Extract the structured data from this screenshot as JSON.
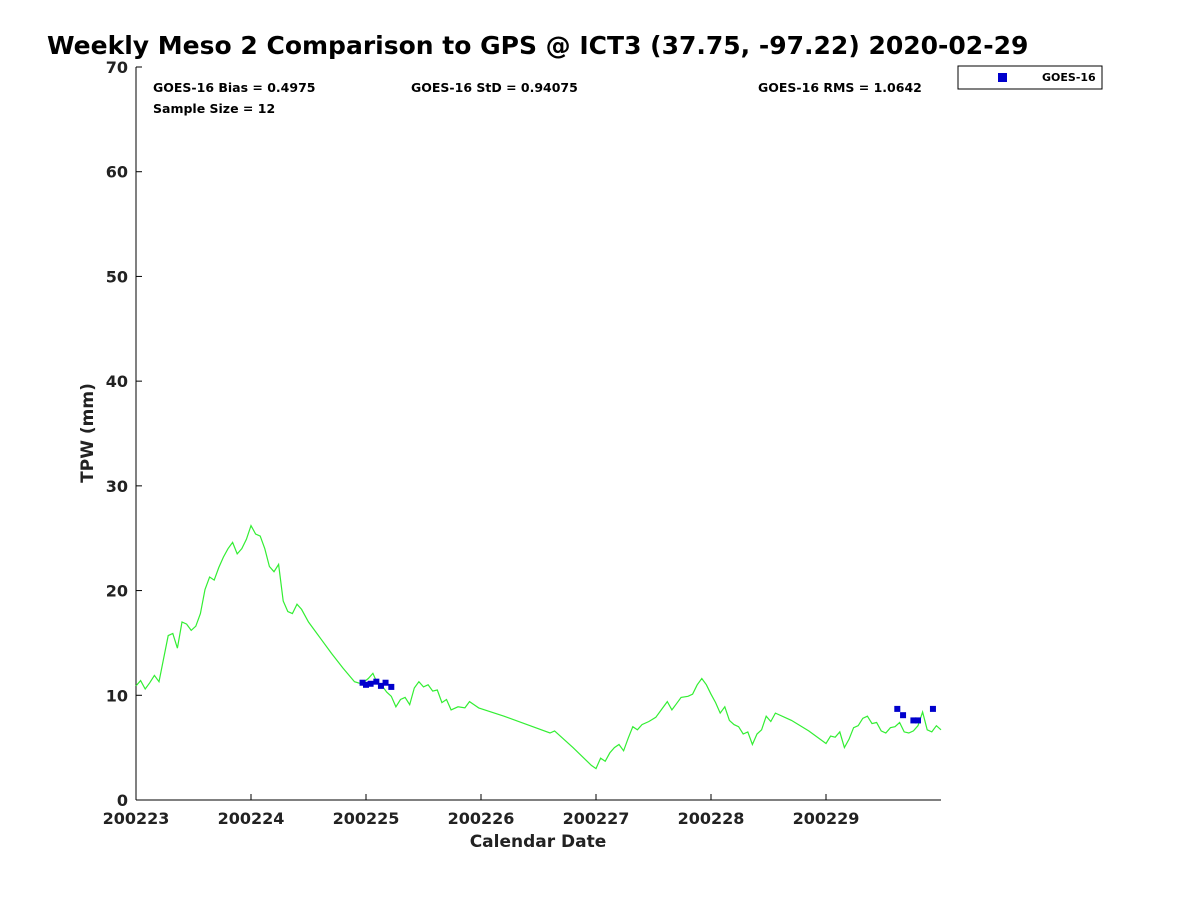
{
  "chart_data": {
    "type": "scatter",
    "title": "Weekly Meso 2 Comparison to GPS @ ICT3 (37.75, -97.22) 2020-02-29",
    "xlabel": "Calendar Date",
    "ylabel": "TPW (mm)",
    "xlim": [
      0,
      7
    ],
    "ylim": [
      0,
      70
    ],
    "x_ticks": [
      {
        "value": 0,
        "label": "200223"
      },
      {
        "value": 1,
        "label": "200224"
      },
      {
        "value": 2,
        "label": "200225"
      },
      {
        "value": 3,
        "label": "200226"
      },
      {
        "value": 4,
        "label": "200227"
      },
      {
        "value": 5,
        "label": "200228"
      },
      {
        "value": 6,
        "label": "200229"
      }
    ],
    "y_ticks": [
      0,
      10,
      20,
      30,
      40,
      50,
      60,
      70
    ],
    "stats": {
      "bias": "GOES-16 Bias = 0.4975",
      "std": "GOES-16 StD = 0.94075",
      "rms": "GOES-16 RMS = 1.0642",
      "sample": "Sample Size = 12"
    },
    "legend": {
      "position": "top-right-outside",
      "entries": [
        {
          "label": "GOES-16",
          "color": "#0000cc",
          "marker": "square"
        }
      ]
    },
    "gps_color": "#33ee33",
    "series": [
      {
        "name": "",
        "kind": "line",
        "color": "#33ee33",
        "points": [
          [
            0.0,
            10.9
          ],
          [
            0.04,
            11.4
          ],
          [
            0.08,
            10.6
          ],
          [
            0.12,
            11.2
          ],
          [
            0.16,
            11.9
          ],
          [
            0.2,
            11.3
          ],
          [
            0.24,
            13.5
          ],
          [
            0.28,
            15.7
          ],
          [
            0.32,
            15.9
          ],
          [
            0.36,
            14.5
          ],
          [
            0.4,
            17.0
          ],
          [
            0.44,
            16.8
          ],
          [
            0.48,
            16.2
          ],
          [
            0.52,
            16.6
          ],
          [
            0.56,
            17.8
          ],
          [
            0.6,
            20.1
          ],
          [
            0.64,
            21.3
          ],
          [
            0.68,
            21.0
          ],
          [
            0.72,
            22.2
          ],
          [
            0.76,
            23.2
          ],
          [
            0.8,
            24.0
          ],
          [
            0.84,
            24.6
          ],
          [
            0.88,
            23.5
          ],
          [
            0.92,
            24.0
          ],
          [
            0.96,
            24.9
          ],
          [
            1.0,
            26.2
          ],
          [
            1.04,
            25.4
          ],
          [
            1.08,
            25.2
          ],
          [
            1.12,
            24.0
          ],
          [
            1.16,
            22.3
          ],
          [
            1.2,
            21.8
          ],
          [
            1.24,
            22.5
          ],
          [
            1.28,
            19.0
          ],
          [
            1.32,
            18.0
          ],
          [
            1.36,
            17.8
          ],
          [
            1.4,
            18.7
          ],
          [
            1.44,
            18.2
          ],
          [
            1.5,
            17.0
          ],
          [
            1.6,
            15.5
          ],
          [
            1.7,
            14.0
          ],
          [
            1.8,
            12.6
          ],
          [
            1.9,
            11.3
          ],
          [
            1.96,
            11.1
          ],
          [
            2.02,
            11.6
          ],
          [
            2.06,
            12.1
          ],
          [
            2.1,
            11.1
          ],
          [
            2.14,
            10.9
          ],
          [
            2.18,
            10.3
          ],
          [
            2.22,
            9.9
          ],
          [
            2.26,
            8.9
          ],
          [
            2.3,
            9.6
          ],
          [
            2.34,
            9.8
          ],
          [
            2.38,
            9.1
          ],
          [
            2.42,
            10.7
          ],
          [
            2.46,
            11.3
          ],
          [
            2.5,
            10.8
          ],
          [
            2.54,
            11.0
          ],
          [
            2.58,
            10.4
          ],
          [
            2.62,
            10.5
          ],
          [
            2.66,
            9.3
          ],
          [
            2.7,
            9.6
          ],
          [
            2.74,
            8.6
          ],
          [
            2.8,
            8.9
          ],
          [
            2.86,
            8.8
          ],
          [
            2.9,
            9.4
          ],
          [
            2.94,
            9.1
          ],
          [
            2.98,
            8.8
          ],
          [
            3.2,
            8.0
          ],
          [
            3.4,
            7.2
          ],
          [
            3.6,
            6.4
          ],
          [
            3.64,
            6.6
          ],
          [
            3.8,
            5.0
          ],
          [
            3.96,
            3.3
          ],
          [
            4.0,
            3.0
          ],
          [
            4.04,
            4.0
          ],
          [
            4.08,
            3.7
          ],
          [
            4.12,
            4.5
          ],
          [
            4.16,
            5.0
          ],
          [
            4.2,
            5.3
          ],
          [
            4.24,
            4.7
          ],
          [
            4.28,
            5.9
          ],
          [
            4.32,
            7.0
          ],
          [
            4.36,
            6.7
          ],
          [
            4.4,
            7.2
          ],
          [
            4.46,
            7.5
          ],
          [
            4.52,
            7.9
          ],
          [
            4.58,
            8.8
          ],
          [
            4.62,
            9.4
          ],
          [
            4.66,
            8.6
          ],
          [
            4.7,
            9.2
          ],
          [
            4.74,
            9.8
          ],
          [
            4.8,
            9.9
          ],
          [
            4.84,
            10.1
          ],
          [
            4.88,
            11.0
          ],
          [
            4.92,
            11.6
          ],
          [
            4.96,
            11.0
          ],
          [
            5.0,
            10.1
          ],
          [
            5.04,
            9.3
          ],
          [
            5.08,
            8.3
          ],
          [
            5.12,
            8.9
          ],
          [
            5.16,
            7.6
          ],
          [
            5.2,
            7.2
          ],
          [
            5.24,
            7.0
          ],
          [
            5.28,
            6.3
          ],
          [
            5.32,
            6.5
          ],
          [
            5.36,
            5.3
          ],
          [
            5.4,
            6.3
          ],
          [
            5.44,
            6.7
          ],
          [
            5.48,
            8.0
          ],
          [
            5.52,
            7.5
          ],
          [
            5.56,
            8.3
          ],
          [
            5.7,
            7.6
          ],
          [
            5.85,
            6.6
          ],
          [
            6.0,
            5.4
          ],
          [
            6.04,
            6.1
          ],
          [
            6.08,
            6.0
          ],
          [
            6.12,
            6.5
          ],
          [
            6.16,
            5.0
          ],
          [
            6.2,
            5.8
          ],
          [
            6.24,
            6.9
          ],
          [
            6.28,
            7.1
          ],
          [
            6.32,
            7.8
          ],
          [
            6.36,
            8.0
          ],
          [
            6.4,
            7.3
          ],
          [
            6.44,
            7.4
          ],
          [
            6.48,
            6.6
          ],
          [
            6.52,
            6.4
          ],
          [
            6.56,
            6.9
          ],
          [
            6.6,
            7.0
          ],
          [
            6.64,
            7.4
          ],
          [
            6.68,
            6.5
          ],
          [
            6.72,
            6.4
          ],
          [
            6.76,
            6.6
          ],
          [
            6.8,
            7.1
          ],
          [
            6.84,
            8.4
          ],
          [
            6.88,
            6.7
          ],
          [
            6.92,
            6.5
          ],
          [
            6.96,
            7.1
          ],
          [
            7.0,
            6.7
          ]
        ]
      },
      {
        "name": "GOES-16",
        "kind": "scatter",
        "color": "#0000cc",
        "points": [
          [
            1.97,
            11.2
          ],
          [
            2.0,
            11.0
          ],
          [
            2.04,
            11.1
          ],
          [
            2.09,
            11.3
          ],
          [
            2.13,
            10.9
          ],
          [
            2.17,
            11.2
          ],
          [
            2.22,
            10.8
          ],
          [
            6.62,
            8.7
          ],
          [
            6.67,
            8.1
          ],
          [
            6.76,
            7.6
          ],
          [
            6.8,
            7.6
          ],
          [
            6.93,
            8.7
          ]
        ]
      }
    ]
  }
}
